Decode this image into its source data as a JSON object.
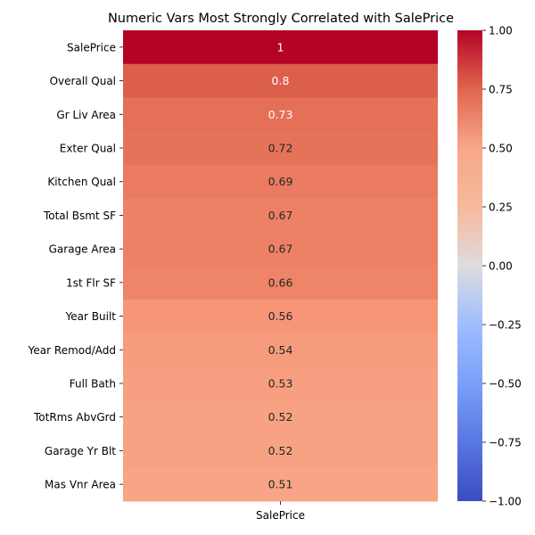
{
  "chart_data": {
    "type": "heatmap",
    "title": "Numeric Vars Most Strongly Correlated with SalePrice",
    "columns": [
      "SalePrice"
    ],
    "rows": [
      "SalePrice",
      "Overall Qual",
      "Gr Liv Area",
      "Exter Qual",
      "Kitchen Qual",
      "Total Bsmt SF",
      "Garage Area",
      "1st Flr SF",
      "Year Built",
      "Year Remod/Add",
      "Full Bath",
      "TotRms AbvGrd",
      "Garage Yr Blt",
      "Mas Vnr Area"
    ],
    "values": [
      1,
      0.8,
      0.73,
      0.72,
      0.69,
      0.67,
      0.67,
      0.66,
      0.56,
      0.54,
      0.53,
      0.52,
      0.52,
      0.51
    ],
    "value_labels": [
      "1",
      "0.8",
      "0.73",
      "0.72",
      "0.69",
      "0.67",
      "0.67",
      "0.66",
      "0.56",
      "0.54",
      "0.53",
      "0.52",
      "0.52",
      "0.51"
    ],
    "colormap": "coolwarm",
    "vmin": -1,
    "vmax": 1,
    "colorbar_ticks": [
      1.0,
      0.75,
      0.5,
      0.25,
      0.0,
      -0.25,
      -0.5,
      -0.75,
      -1.0
    ],
    "colorbar_tick_labels": [
      "1.00",
      "0.75",
      "0.50",
      "0.25",
      "0.00",
      "−0.25",
      "−0.50",
      "−0.75",
      "−1.00"
    ]
  }
}
